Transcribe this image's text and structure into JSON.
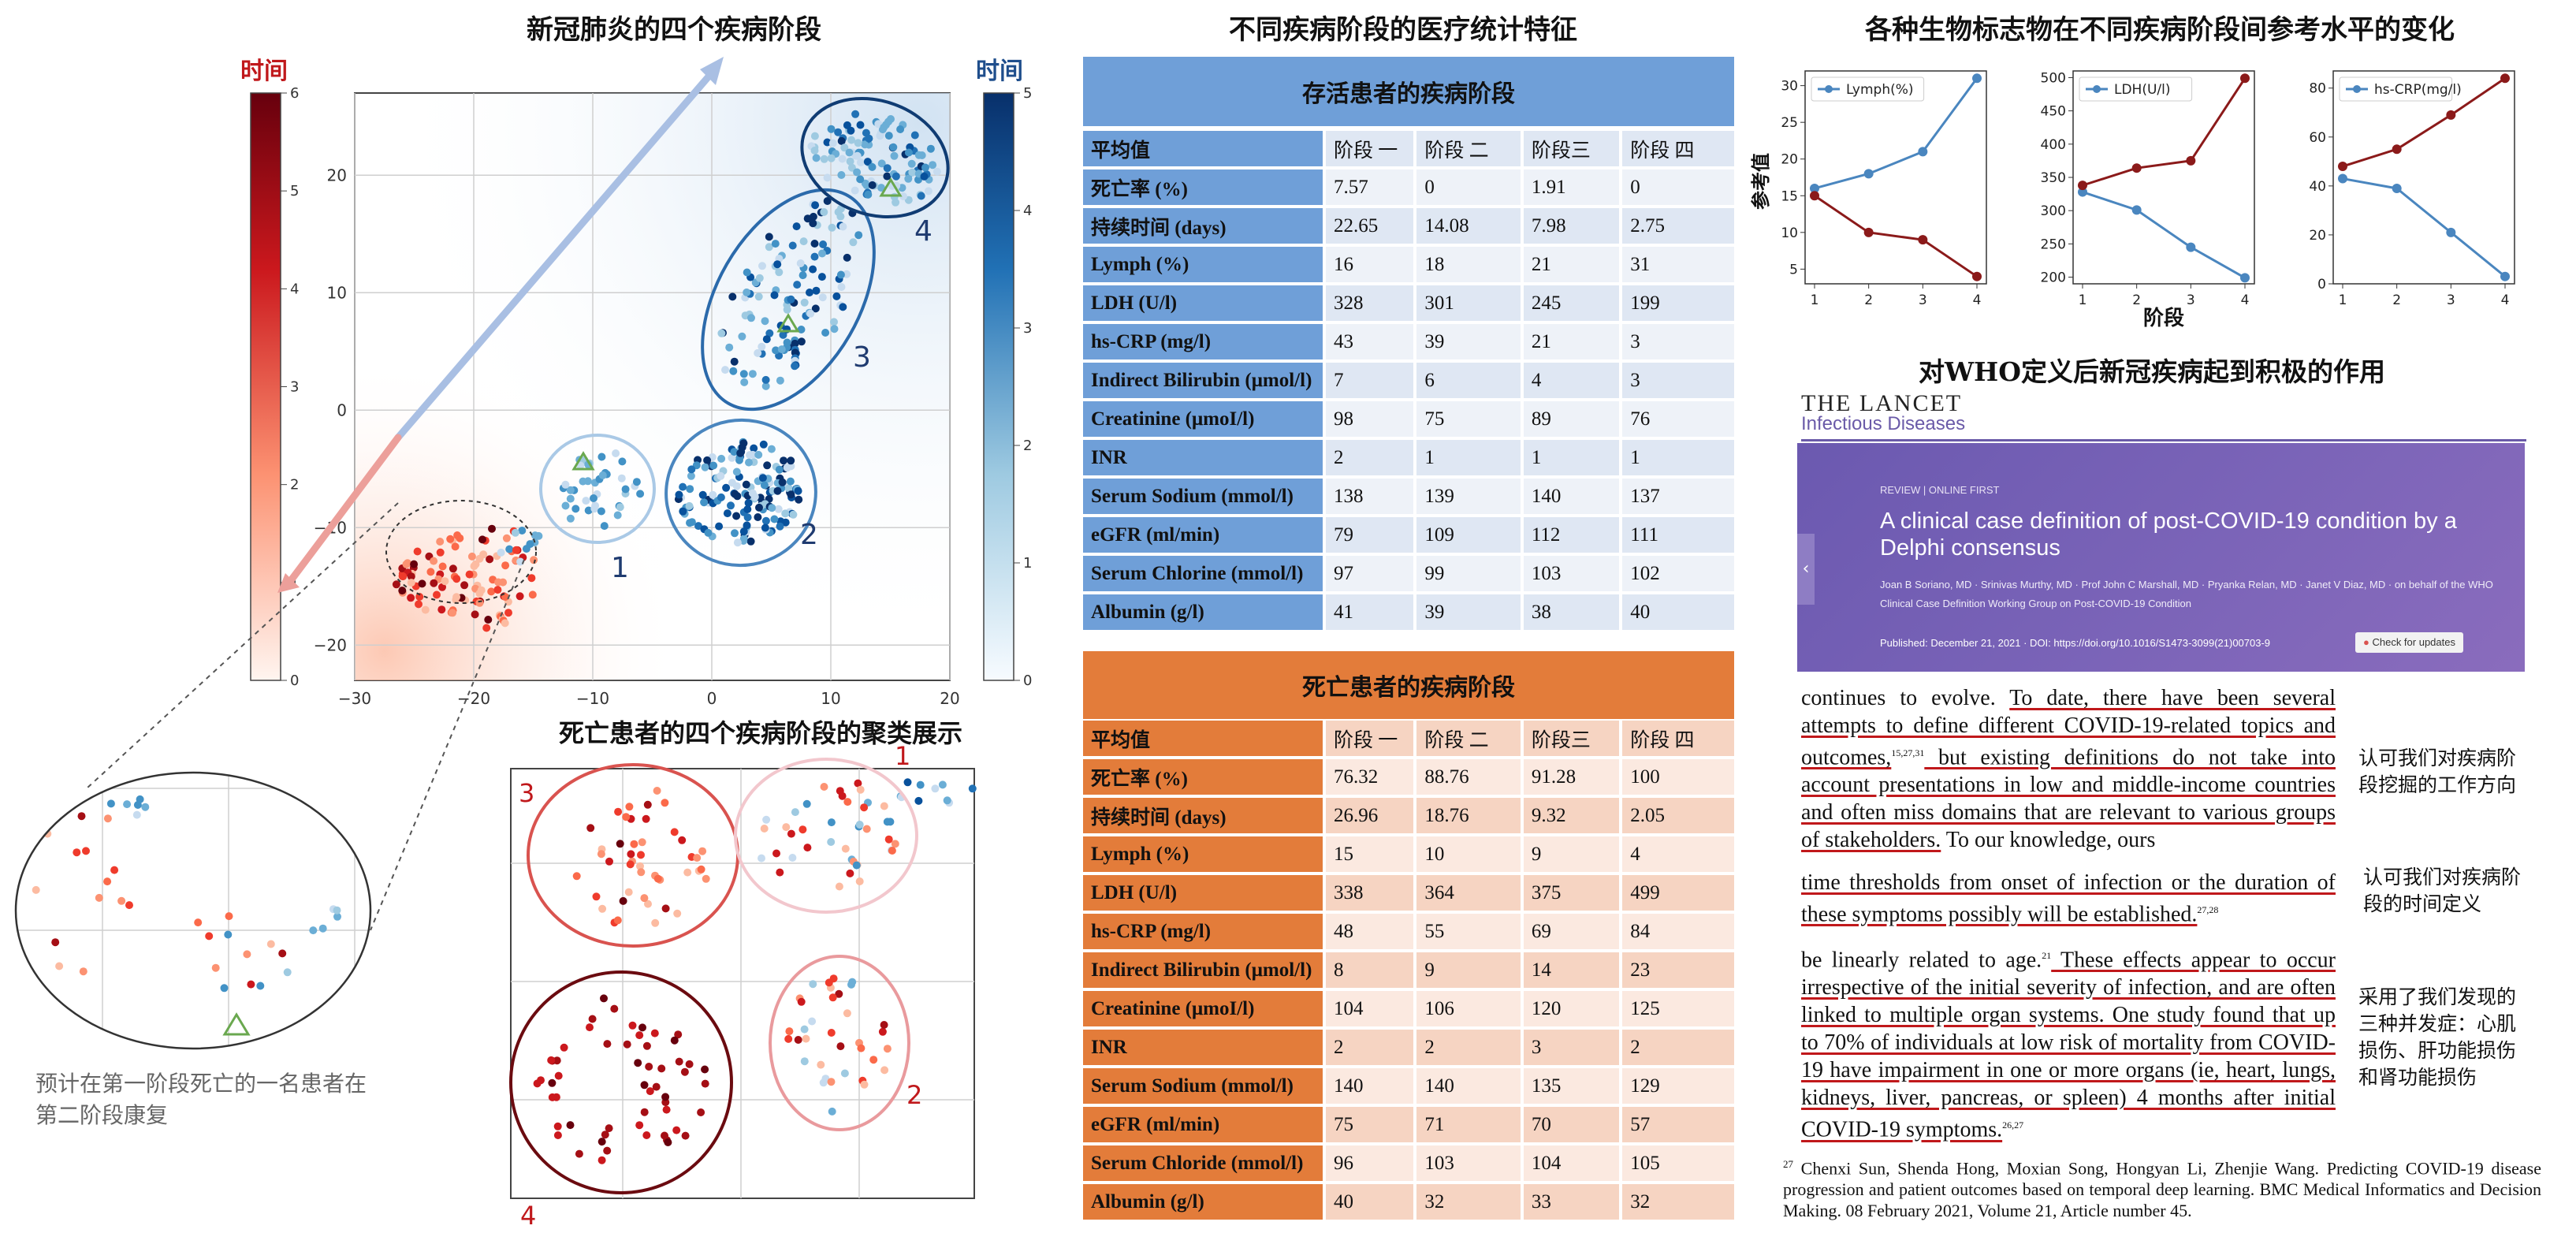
{
  "panel1": {
    "title": "新冠肺炎的四个疾病阶段",
    "colorbar_red_label": "时间",
    "colorbar_blue_label": "时间",
    "red_ticks": [
      "0",
      "1",
      "2",
      "3",
      "4",
      "5",
      "6"
    ],
    "blue_ticks": [
      "0",
      "1",
      "2",
      "3",
      "4",
      "5"
    ],
    "x_ticks": [
      "−30",
      "−20",
      "−10",
      "0",
      "10",
      "20"
    ],
    "y_ticks": [
      "−20",
      "−10",
      "0",
      "10",
      "20"
    ],
    "cluster_labels": [
      "1",
      "2",
      "3",
      "4"
    ],
    "zoom_caption": "预计在第一阶段死亡的一名患者在第二阶段康复"
  },
  "panel2": {
    "title": "死亡患者的四个疾病阶段的聚类展示",
    "cluster_labels": [
      "1",
      "2",
      "3",
      "4"
    ]
  },
  "tables": {
    "title": "不同疾病阶段的医疗统计特征",
    "survivor": {
      "heading": "存活患者的疾病阶段",
      "columns": [
        "平均值",
        "阶段 一",
        "阶段 二",
        "阶段三",
        "阶段 四"
      ],
      "rows": [
        [
          "死亡率 (%)",
          "7.57",
          "0",
          "1.91",
          "0"
        ],
        [
          "持续时间 (days)",
          "22.65",
          "14.08",
          "7.98",
          "2.75"
        ],
        [
          "Lymph (%)",
          "16",
          "18",
          "21",
          "31"
        ],
        [
          "LDH (U/l)",
          "328",
          "301",
          "245",
          "199"
        ],
        [
          "hs-CRP (mg/l)",
          "43",
          "39",
          "21",
          "3"
        ],
        [
          "Indirect Bilirubin (μmol/l)",
          "7",
          "6",
          "4",
          "3"
        ],
        [
          "Creatinine (μmoI/l)",
          "98",
          "75",
          "89",
          "76"
        ],
        [
          "INR",
          "2",
          "1",
          "1",
          "1"
        ],
        [
          "Serum Sodium (mmol/l)",
          "138",
          "139",
          "140",
          "137"
        ],
        [
          "eGFR (ml/min)",
          "79",
          "109",
          "112",
          "111"
        ],
        [
          "Serum Chlorine (mmol/l)",
          "97",
          "99",
          "103",
          "102"
        ],
        [
          "Albumin (g/l)",
          "41",
          "39",
          "38",
          "40"
        ]
      ]
    },
    "deceased": {
      "heading": "死亡患者的疾病阶段",
      "columns": [
        "平均值",
        "阶段 一",
        "阶段 二",
        "阶段三",
        "阶段 四"
      ],
      "rows": [
        [
          "死亡率 (%)",
          "76.32",
          "88.76",
          "91.28",
          "100"
        ],
        [
          "持续时间 (days)",
          "26.96",
          "18.76",
          "9.32",
          "2.05"
        ],
        [
          "Lymph (%)",
          "15",
          "10",
          "9",
          "4"
        ],
        [
          "LDH (U/l)",
          "338",
          "364",
          "375",
          "499"
        ],
        [
          "hs-CRP (mg/l)",
          "48",
          "55",
          "69",
          "84"
        ],
        [
          "Indirect Bilirubin (μmol/l)",
          "8",
          "9",
          "14",
          "23"
        ],
        [
          "Creatinine (μmoI/l)",
          "104",
          "106",
          "120",
          "125"
        ],
        [
          "INR",
          "2",
          "2",
          "3",
          "2"
        ],
        [
          "Serum Sodium (mmol/l)",
          "140",
          "140",
          "135",
          "129"
        ],
        [
          "eGFR (ml/min)",
          "75",
          "71",
          "70",
          "57"
        ],
        [
          "Serum Chloride (mmol/l)",
          "96",
          "103",
          "104",
          "105"
        ],
        [
          "Albumin (g/l)",
          "40",
          "32",
          "33",
          "32"
        ]
      ]
    }
  },
  "chart_data": [
    {
      "type": "line",
      "x": [
        1,
        2,
        3,
        4
      ],
      "series": [
        {
          "name": "Lymph(%)",
          "values": [
            16,
            18,
            21,
            31
          ],
          "color": "#4a86bf"
        },
        {
          "values": [
            15,
            10,
            9,
            4
          ],
          "color": "#8b1a1a"
        }
      ],
      "ylim": [
        3,
        32
      ],
      "ylabel": "参考值",
      "xlabel": ""
    },
    {
      "type": "line",
      "x": [
        1,
        2,
        3,
        4
      ],
      "series": [
        {
          "name": "LDH(U/l)",
          "values": [
            328,
            301,
            245,
            199
          ],
          "color": "#4a86bf"
        },
        {
          "values": [
            338,
            364,
            375,
            499
          ],
          "color": "#8b1a1a"
        }
      ],
      "ylim": [
        190,
        510
      ],
      "xlabel": "阶段"
    },
    {
      "type": "line",
      "x": [
        1,
        2,
        3,
        4
      ],
      "series": [
        {
          "name": "hs-CRP(mg/l)",
          "values": [
            43,
            39,
            21,
            3
          ],
          "color": "#4a86bf"
        },
        {
          "values": [
            48,
            55,
            69,
            84
          ],
          "color": "#8b1a1a"
        }
      ],
      "ylim": [
        0,
        87
      ],
      "xlabel": ""
    }
  ],
  "charts_meta": {
    "title": "各种生物标志物在不同疾病阶段间参考水平的变化",
    "ylabel": "参考值",
    "xlabel": "阶段",
    "x_ticks": [
      "1",
      "2",
      "3",
      "4"
    ],
    "y_ticks_1": [
      "5",
      "10",
      "15",
      "20",
      "25",
      "30"
    ],
    "y_ticks_2": [
      "200",
      "250",
      "300",
      "350",
      "400",
      "450",
      "500"
    ],
    "y_ticks_3": [
      "0",
      "20",
      "40",
      "60",
      "80"
    ]
  },
  "article": {
    "section_title": "对WHO定义后新冠疾病起到积极的作用",
    "journal": "THE LANCET",
    "journal_sub": "Infectious Diseases",
    "tags": "REVIEW | ONLINE FIRST",
    "headline": "A clinical case definition of post-COVID-19 condition by a Delphi consensus",
    "authors": "Joan B Soriano, MD · Srinivas Murthy, MD · Prof John C Marshall, MD · Pryanka Relan, MD · Janet V Diaz, MD · on behalf of the WHO Clinical Case Definition Working Group on Post-COVID-19 Condition",
    "published": "Published: December 21, 2021 · DOI: https://doi.org/10.1016/S1473-3099(21)00703-9",
    "check_updates": "Check for updates",
    "p1_pre": "continues to evolve. ",
    "p1_ul1": "To date, there have been several attempts to define different COVID-19-related topics and outcomes,",
    "p1_sup": "15,27,31",
    "p1_ul2": " but existing definitions do not take into account presentations in low and middle-income countries and often miss domains that are relevant to various groups of stakeholders.",
    "p1_post": " To our knowledge, ours",
    "p2_ul": "time thresholds from onset of infection or the duration of these symptoms possibly will be established.",
    "p2_sup": "27,28",
    "p3_pre": "be linearly related to age.",
    "p3_sup1": "21",
    "p3_ul": " These effects appear to occur irrespective of the initial severity of infection, and are often linked to multiple organ systems. One study found that up to 70% of individuals at low risk of mortality from COVID-19 have impairment in one or more organs (ie, heart, lungs, kidneys, liver, pancreas, or spleen) 4 months after initial COVID-19 symptoms.",
    "p3_sup2": "26,27",
    "note1": "认可我们对疾病阶段挖掘的工作方向",
    "note2": "认可我们对疾病阶段的时间定义",
    "note3": "采用了我们发现的三种并发症：心肌损伤、肝功能损伤和肾功能损伤",
    "ref_sup": "27",
    "reference": " Chenxi Sun, Shenda Hong, Moxian Song, Hongyan Li, Zhenjie Wang. Predicting COVID-19 disease progression and patient outcomes based on temporal deep learning. BMC Medical Informatics and Decision Making. 08 February 2021, Volume 21, Article number 45."
  },
  "colors": {
    "red_dark": "#67000d",
    "blue_dark": "#08306b",
    "lancet_purple": "#6a5aa8",
    "underline": "#c0181b"
  }
}
